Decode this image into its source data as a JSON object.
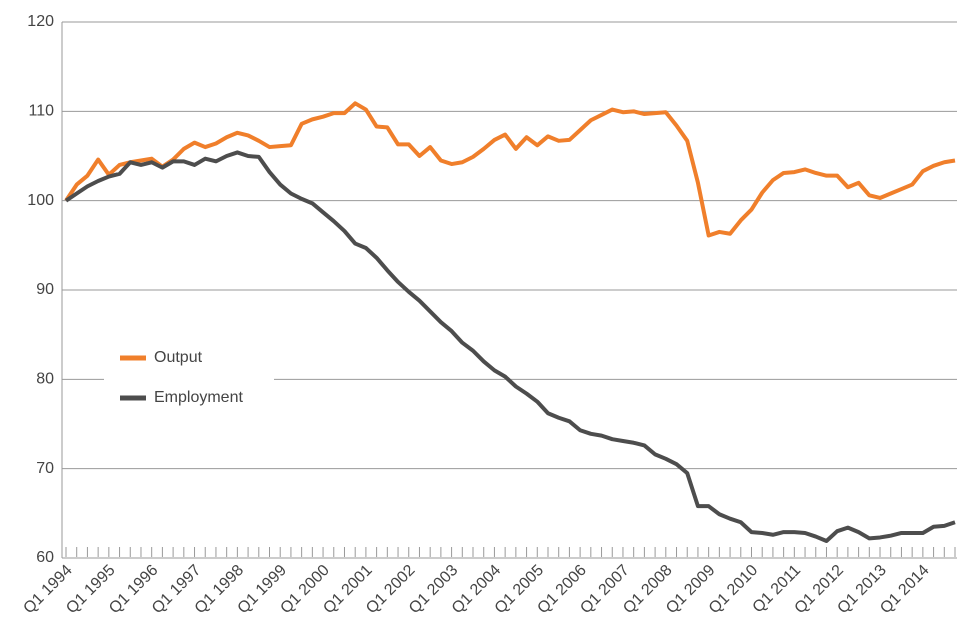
{
  "chart_data": {
    "type": "line",
    "categories": [
      "Q1 1994",
      null,
      null,
      null,
      "Q1 1995",
      null,
      null,
      null,
      "Q1 1996",
      null,
      null,
      null,
      "Q1 1997",
      null,
      null,
      null,
      "Q1 1998",
      null,
      null,
      null,
      "Q1 1999",
      null,
      null,
      null,
      "Q1 2000",
      null,
      null,
      null,
      "Q1 2001",
      null,
      null,
      null,
      "Q1 2002",
      null,
      null,
      null,
      "Q1 2003",
      null,
      null,
      null,
      "Q1 2004",
      null,
      null,
      null,
      "Q1 2005",
      null,
      null,
      null,
      "Q1 2006",
      null,
      null,
      null,
      "Q1 2007",
      null,
      null,
      null,
      "Q1 2008",
      null,
      null,
      null,
      "Q1 2009",
      null,
      null,
      null,
      "Q1 2010",
      null,
      null,
      null,
      "Q1 2011",
      null,
      null,
      null,
      "Q1 2012",
      null,
      null,
      null,
      "Q1 2013",
      null,
      null,
      null,
      "Q1 2014",
      null,
      null,
      null
    ],
    "series": [
      {
        "name": "Output",
        "color": "#f07f2b",
        "values": [
          100,
          101.8,
          102.8,
          104.6,
          102.9,
          104.0,
          104.3,
          104.5,
          104.7,
          103.8,
          104.6,
          105.8,
          106.5,
          106.0,
          106.4,
          107.1,
          107.6,
          107.3,
          106.7,
          106.0,
          106.1,
          106.2,
          108.6,
          109.1,
          109.4,
          109.8,
          109.8,
          110.9,
          110.2,
          108.3,
          108.2,
          106.3,
          106.3,
          105.0,
          106.0,
          104.5,
          104.1,
          104.3,
          104.9,
          105.8,
          106.8,
          107.4,
          105.8,
          107.1,
          106.2,
          107.2,
          106.7,
          106.8,
          107.9,
          109.0,
          109.6,
          110.2,
          109.9,
          110.0,
          109.7,
          109.8,
          109.9,
          108.4,
          106.7,
          102.0,
          96.1,
          96.5,
          96.3,
          97.8,
          99.0,
          100.9,
          102.3,
          103.1,
          103.2,
          103.5,
          103.1,
          102.8,
          102.8,
          101.5,
          102.0,
          100.6,
          100.3,
          100.8,
          101.3,
          101.8,
          103.3,
          103.9,
          104.3,
          104.5
        ]
      },
      {
        "name": "Employment",
        "color": "#4d4d4d",
        "values": [
          100,
          100.8,
          101.6,
          102.2,
          102.7,
          103.0,
          104.3,
          104.0,
          104.3,
          103.7,
          104.4,
          104.4,
          104.0,
          104.7,
          104.4,
          105.0,
          105.4,
          105.0,
          104.9,
          103.2,
          101.8,
          100.8,
          100.2,
          99.7,
          98.7,
          97.7,
          96.6,
          95.2,
          94.7,
          93.6,
          92.2,
          90.9,
          89.8,
          88.8,
          87.6,
          86.4,
          85.4,
          84.1,
          83.2,
          82.0,
          81.0,
          80.3,
          79.2,
          78.4,
          77.5,
          76.2,
          75.7,
          75.3,
          74.3,
          73.9,
          73.7,
          73.3,
          73.1,
          72.9,
          72.6,
          71.6,
          71.1,
          70.5,
          69.5,
          65.8,
          65.8,
          64.9,
          64.4,
          64.0,
          62.9,
          62.8,
          62.6,
          62.9,
          62.9,
          62.8,
          62.4,
          61.9,
          63.0,
          63.4,
          62.9,
          62.2,
          62.3,
          62.5,
          62.8,
          62.8,
          62.8,
          63.5,
          63.6,
          64.0
        ]
      }
    ],
    "ylim": [
      60,
      120
    ],
    "yticks": [
      60,
      70,
      80,
      90,
      100,
      110,
      120
    ],
    "grid": true,
    "legend": "center left"
  }
}
